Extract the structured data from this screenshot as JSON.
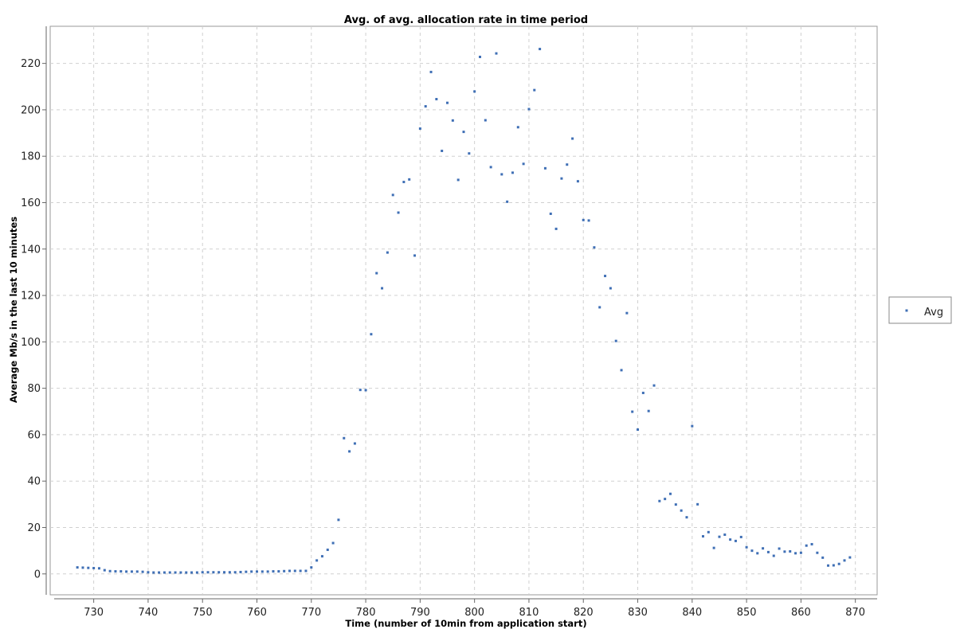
{
  "chart_data": {
    "type": "scatter",
    "title": "Avg. of avg. allocation rate in time period",
    "xlabel": "Time (number of 10min from application start)",
    "ylabel": "Average Mb/s in the last 10 minutes",
    "xlim": [
      722,
      874
    ],
    "ylim": [
      -9,
      236
    ],
    "x_ticks": [
      730,
      740,
      750,
      760,
      770,
      780,
      790,
      800,
      810,
      820,
      830,
      840,
      850,
      860,
      870
    ],
    "y_ticks": [
      0,
      20,
      40,
      60,
      80,
      100,
      120,
      140,
      160,
      180,
      200,
      220
    ],
    "grid": true,
    "legend_position": "right",
    "series": [
      {
        "name": "Avg",
        "color": "#3f6fb5",
        "points": [
          [
            727,
            2.8
          ],
          [
            728,
            2.7
          ],
          [
            729,
            2.6
          ],
          [
            730,
            2.5
          ],
          [
            731,
            2.4
          ],
          [
            732,
            1.6
          ],
          [
            733,
            1.2
          ],
          [
            734,
            1.1
          ],
          [
            735,
            1.1
          ],
          [
            736,
            1.0
          ],
          [
            737,
            1.0
          ],
          [
            738,
            1.0
          ],
          [
            739,
            0.9
          ],
          [
            740,
            0.7
          ],
          [
            741,
            0.6
          ],
          [
            742,
            0.6
          ],
          [
            743,
            0.6
          ],
          [
            744,
            0.6
          ],
          [
            745,
            0.6
          ],
          [
            746,
            0.6
          ],
          [
            747,
            0.6
          ],
          [
            748,
            0.6
          ],
          [
            749,
            0.6
          ],
          [
            750,
            0.7
          ],
          [
            751,
            0.7
          ],
          [
            752,
            0.7
          ],
          [
            753,
            0.7
          ],
          [
            754,
            0.7
          ],
          [
            755,
            0.7
          ],
          [
            756,
            0.7
          ],
          [
            757,
            0.8
          ],
          [
            758,
            0.9
          ],
          [
            759,
            1.0
          ],
          [
            760,
            1.0
          ],
          [
            761,
            1.0
          ],
          [
            762,
            1.0
          ],
          [
            763,
            1.1
          ],
          [
            764,
            1.1
          ],
          [
            765,
            1.2
          ],
          [
            766,
            1.3
          ],
          [
            767,
            1.3
          ],
          [
            768,
            1.3
          ],
          [
            769,
            1.3
          ],
          [
            770,
            2.8
          ],
          [
            771,
            5.8
          ],
          [
            772,
            7.6
          ],
          [
            773,
            10.4
          ],
          [
            774,
            13.3
          ],
          [
            775,
            23.3
          ],
          [
            776,
            58.5
          ],
          [
            777,
            52.8
          ],
          [
            778,
            56.2
          ],
          [
            779,
            79.3
          ],
          [
            780,
            79.2
          ],
          [
            781,
            103.3
          ],
          [
            782,
            129.6
          ],
          [
            783,
            123.1
          ],
          [
            784,
            138.5
          ],
          [
            785,
            163.3
          ],
          [
            786,
            155.7
          ],
          [
            787,
            168.9
          ],
          [
            788,
            170.0
          ],
          [
            789,
            137.2
          ],
          [
            790,
            191.9
          ],
          [
            791,
            201.5
          ],
          [
            792,
            216.3
          ],
          [
            793,
            204.6
          ],
          [
            794,
            182.3
          ],
          [
            795,
            203.0
          ],
          [
            796,
            195.4
          ],
          [
            797,
            169.8
          ],
          [
            798,
            190.5
          ],
          [
            799,
            181.2
          ],
          [
            800,
            207.9
          ],
          [
            801,
            222.8
          ],
          [
            802,
            195.5
          ],
          [
            803,
            175.3
          ],
          [
            804,
            224.3
          ],
          [
            805,
            172.2
          ],
          [
            806,
            160.4
          ],
          [
            807,
            172.9
          ],
          [
            808,
            192.5
          ],
          [
            809,
            176.7
          ],
          [
            810,
            200.3
          ],
          [
            811,
            208.5
          ],
          [
            812,
            226.2
          ],
          [
            813,
            174.8
          ],
          [
            814,
            155.2
          ],
          [
            815,
            148.7
          ],
          [
            816,
            170.4
          ],
          [
            817,
            176.4
          ],
          [
            818,
            187.6
          ],
          [
            819,
            169.2
          ],
          [
            820,
            152.5
          ],
          [
            821,
            152.3
          ],
          [
            822,
            140.7
          ],
          [
            823,
            114.9
          ],
          [
            824,
            128.4
          ],
          [
            825,
            123.1
          ],
          [
            826,
            100.4
          ],
          [
            827,
            87.8
          ],
          [
            828,
            112.4
          ],
          [
            829,
            69.9
          ],
          [
            830,
            62.2
          ],
          [
            831,
            78.0
          ],
          [
            832,
            70.2
          ],
          [
            833,
            81.2
          ],
          [
            834,
            31.4
          ],
          [
            835,
            32.3
          ],
          [
            836,
            34.5
          ],
          [
            837,
            29.9
          ],
          [
            838,
            27.3
          ],
          [
            839,
            24.4
          ],
          [
            840,
            63.7
          ],
          [
            841,
            30.0
          ],
          [
            842,
            16.2
          ],
          [
            843,
            18.0
          ],
          [
            844,
            11.2
          ],
          [
            845,
            16.0
          ],
          [
            846,
            16.9
          ],
          [
            847,
            14.8
          ],
          [
            848,
            14.2
          ],
          [
            849,
            15.9
          ],
          [
            850,
            11.5
          ],
          [
            851,
            10.0
          ],
          [
            852,
            8.9
          ],
          [
            853,
            11.0
          ],
          [
            854,
            9.4
          ],
          [
            855,
            7.8
          ],
          [
            856,
            10.9
          ],
          [
            857,
            9.6
          ],
          [
            858,
            9.7
          ],
          [
            859,
            8.9
          ],
          [
            860,
            9.1
          ],
          [
            861,
            12.2
          ],
          [
            862,
            12.8
          ],
          [
            863,
            9.1
          ],
          [
            864,
            7.0
          ],
          [
            865,
            3.6
          ],
          [
            866,
            3.7
          ],
          [
            867,
            4.3
          ],
          [
            868,
            5.8
          ],
          [
            869,
            7.1
          ]
        ]
      }
    ]
  }
}
